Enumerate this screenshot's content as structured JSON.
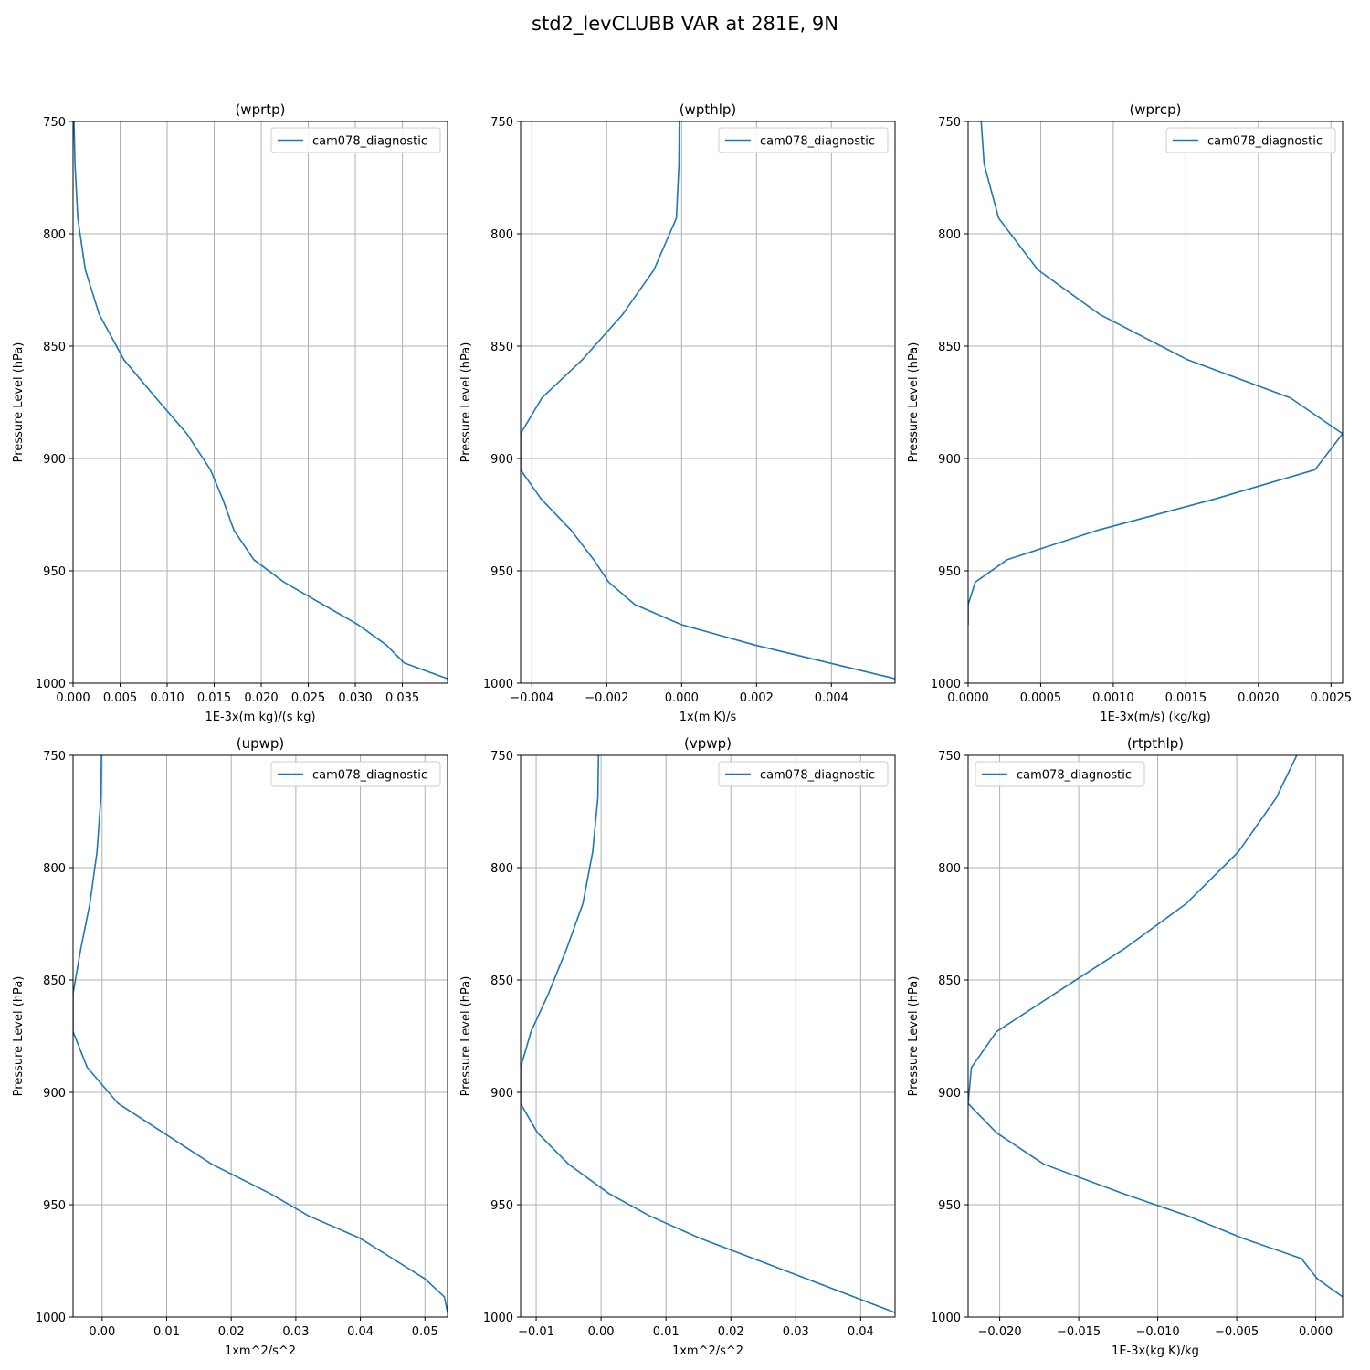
{
  "figure_title": "std2_levCLUBB VAR at 281E, 9N",
  "colors": {
    "series": "#1f77b4",
    "grid": "#b0b0b0",
    "axes": "#000000"
  },
  "chart_data": [
    {
      "type": "line",
      "title": "(wprtp)",
      "xlabel": "1E-3x(m kg)/(s kg)",
      "ylabel": "Pressure Level (hPa)",
      "xlim": [
        0.0,
        0.0398
      ],
      "ylim": [
        1000,
        750
      ],
      "y_inverted": true,
      "grid": true,
      "legend_position": "upper right",
      "xticks": [
        "0.000",
        "0.005",
        "0.010",
        "0.015",
        "0.020",
        "0.025",
        "0.030",
        "0.035"
      ],
      "xtick_values": [
        0.0,
        0.005,
        0.01,
        0.015,
        0.02,
        0.025,
        0.03,
        0.035
      ],
      "yticks": [
        "750",
        "800",
        "850",
        "900",
        "950",
        "1000"
      ],
      "ytick_values": [
        750,
        800,
        850,
        900,
        950,
        1000
      ],
      "series": [
        {
          "name": "cam078_diagnostic",
          "x": [
            0.0001,
            0.0002,
            0.0005,
            0.0013,
            0.0028,
            0.0054,
            0.0088,
            0.0121,
            0.0146,
            0.0159,
            0.0171,
            0.0192,
            0.0224,
            0.0303,
            0.0333,
            0.0352,
            0.0398
          ],
          "y": [
            750,
            769,
            793,
            816,
            836,
            856,
            873,
            889,
            905,
            918,
            932,
            945,
            955,
            974,
            983,
            991,
            998
          ]
        }
      ]
    },
    {
      "type": "line",
      "title": "(wpthlp)",
      "xlabel": "1x(m K)/s",
      "ylabel": "Pressure Level (hPa)",
      "xlim": [
        -0.0043,
        0.0057
      ],
      "ylim": [
        1000,
        750
      ],
      "y_inverted": true,
      "grid": true,
      "legend_position": "upper right",
      "xticks": [
        "−0.004",
        "−0.002",
        "0.000",
        "0.002",
        "0.004"
      ],
      "xtick_values": [
        -0.004,
        -0.002,
        0.0,
        0.002,
        0.004
      ],
      "yticks": [
        "750",
        "800",
        "850",
        "900",
        "950",
        "1000"
      ],
      "ytick_values": [
        750,
        800,
        850,
        900,
        950,
        1000
      ],
      "series": [
        {
          "name": "cam078_diagnostic",
          "x": [
            -6e-05,
            -7e-05,
            -0.00014,
            -0.00074,
            -0.00158,
            -0.00265,
            -0.00373,
            -0.0043,
            -0.0043,
            -0.00375,
            -0.00295,
            -0.00235,
            -0.00195,
            -0.00125,
            0.0,
            0.00195,
            0.0057
          ],
          "y": [
            750,
            769,
            793,
            816,
            836,
            856,
            873,
            889,
            905,
            918,
            932,
            945,
            955,
            965,
            974,
            983,
            998
          ]
        }
      ]
    },
    {
      "type": "line",
      "title": "(wprcp)",
      "xlabel": "1E-3x(m/s) (kg/kg)",
      "ylabel": "Pressure Level (hPa)",
      "xlim": [
        0.0,
        0.00258
      ],
      "ylim": [
        1000,
        750
      ],
      "y_inverted": true,
      "grid": true,
      "legend_position": "upper right",
      "xticks": [
        "0.0000",
        "0.0005",
        "0.0010",
        "0.0015",
        "0.0020",
        "0.0025"
      ],
      "xtick_values": [
        0.0,
        0.0005,
        0.001,
        0.0015,
        0.002,
        0.0025
      ],
      "yticks": [
        "750",
        "800",
        "850",
        "900",
        "950",
        "1000"
      ],
      "ytick_values": [
        750,
        800,
        850,
        900,
        950,
        1000
      ],
      "series": [
        {
          "name": "cam078_diagnostic",
          "x": [
            9e-05,
            0.00011,
            0.00021,
            0.00048,
            0.00091,
            0.00151,
            0.00222,
            0.00258,
            0.00239,
            0.0017,
            0.00089,
            0.00027,
            5e-05,
            0.0,
            0.0
          ],
          "y": [
            750,
            769,
            793,
            816,
            836,
            856,
            873,
            889,
            905,
            918,
            932,
            945,
            955,
            965,
            974
          ]
        }
      ]
    },
    {
      "type": "line",
      "title": "(upwp)",
      "xlabel": "1xm^2/s^2",
      "ylabel": "Pressure Level (hPa)",
      "xlim": [
        -0.0045,
        0.0535
      ],
      "ylim": [
        1000,
        750
      ],
      "y_inverted": true,
      "grid": true,
      "legend_position": "upper right",
      "xticks": [
        "0.00",
        "0.01",
        "0.02",
        "0.03",
        "0.04",
        "0.05"
      ],
      "xtick_values": [
        0.0,
        0.01,
        0.02,
        0.03,
        0.04,
        0.05
      ],
      "yticks": [
        "750",
        "800",
        "850",
        "900",
        "950",
        "1000"
      ],
      "ytick_values": [
        750,
        800,
        850,
        900,
        950,
        1000
      ],
      "series": [
        {
          "name": "cam078_diagnostic",
          "x": [
            -0.0001,
            -0.0002,
            -0.0008,
            -0.0019,
            -0.0033,
            -0.0045,
            -0.0045,
            -0.0023,
            0.0025,
            0.0095,
            0.017,
            0.026,
            0.032,
            0.04,
            0.045,
            0.05,
            0.053,
            0.0535
          ],
          "y": [
            750,
            769,
            793,
            816,
            836,
            856,
            873,
            889,
            905,
            918,
            932,
            945,
            955,
            965,
            974,
            983,
            991,
            998
          ]
        }
      ]
    },
    {
      "type": "line",
      "title": "(vpwp)",
      "xlabel": "1xm^2/s^2",
      "ylabel": "Pressure Level (hPa)",
      "xlim": [
        -0.0124,
        0.0453
      ],
      "ylim": [
        1000,
        750
      ],
      "y_inverted": true,
      "grid": true,
      "legend_position": "upper right",
      "xticks": [
        "−0.01",
        "0.00",
        "0.01",
        "0.02",
        "0.03",
        "0.04"
      ],
      "xtick_values": [
        -0.01,
        0.0,
        0.01,
        0.02,
        0.03,
        0.04
      ],
      "yticks": [
        "750",
        "800",
        "850",
        "900",
        "950",
        "1000"
      ],
      "ytick_values": [
        750,
        800,
        850,
        900,
        950,
        1000
      ],
      "series": [
        {
          "name": "cam078_diagnostic",
          "x": [
            -0.0004,
            -0.0005,
            -0.0013,
            -0.0028,
            -0.0053,
            -0.0081,
            -0.0108,
            -0.0124,
            -0.0124,
            -0.0098,
            -0.005,
            0.0012,
            0.0075,
            0.0153,
            0.0235,
            0.0453
          ],
          "y": [
            750,
            769,
            793,
            816,
            836,
            856,
            873,
            889,
            905,
            918,
            932,
            945,
            955,
            965,
            974,
            998
          ]
        }
      ]
    },
    {
      "type": "line",
      "title": "(rtpthlp)",
      "xlabel": "1E-3x(kg K)/kg",
      "ylabel": "Pressure Level (hPa)",
      "xlim": [
        -0.022,
        0.0017
      ],
      "ylim": [
        1000,
        750
      ],
      "y_inverted": true,
      "grid": true,
      "legend_position": "upper left",
      "xticks": [
        "−0.020",
        "−0.015",
        "−0.010",
        "−0.005",
        "0.000"
      ],
      "xtick_values": [
        -0.02,
        -0.015,
        -0.01,
        -0.005,
        0.0
      ],
      "yticks": [
        "750",
        "800",
        "850",
        "900",
        "950",
        "1000"
      ],
      "ytick_values": [
        750,
        800,
        850,
        900,
        950,
        1000
      ],
      "series": [
        {
          "name": "cam078_diagnostic",
          "x": [
            -0.0012,
            -0.0025,
            -0.0049,
            -0.0082,
            -0.0121,
            -0.0165,
            -0.0202,
            -0.0218,
            -0.022,
            -0.0202,
            -0.0172,
            -0.0122,
            -0.0081,
            -0.0046,
            -0.0009,
            0.0001,
            0.0017
          ],
          "y": [
            750,
            769,
            793,
            816,
            836,
            856,
            873,
            889,
            905,
            918,
            932,
            945,
            955,
            965,
            974,
            983,
            991
          ]
        }
      ]
    }
  ]
}
